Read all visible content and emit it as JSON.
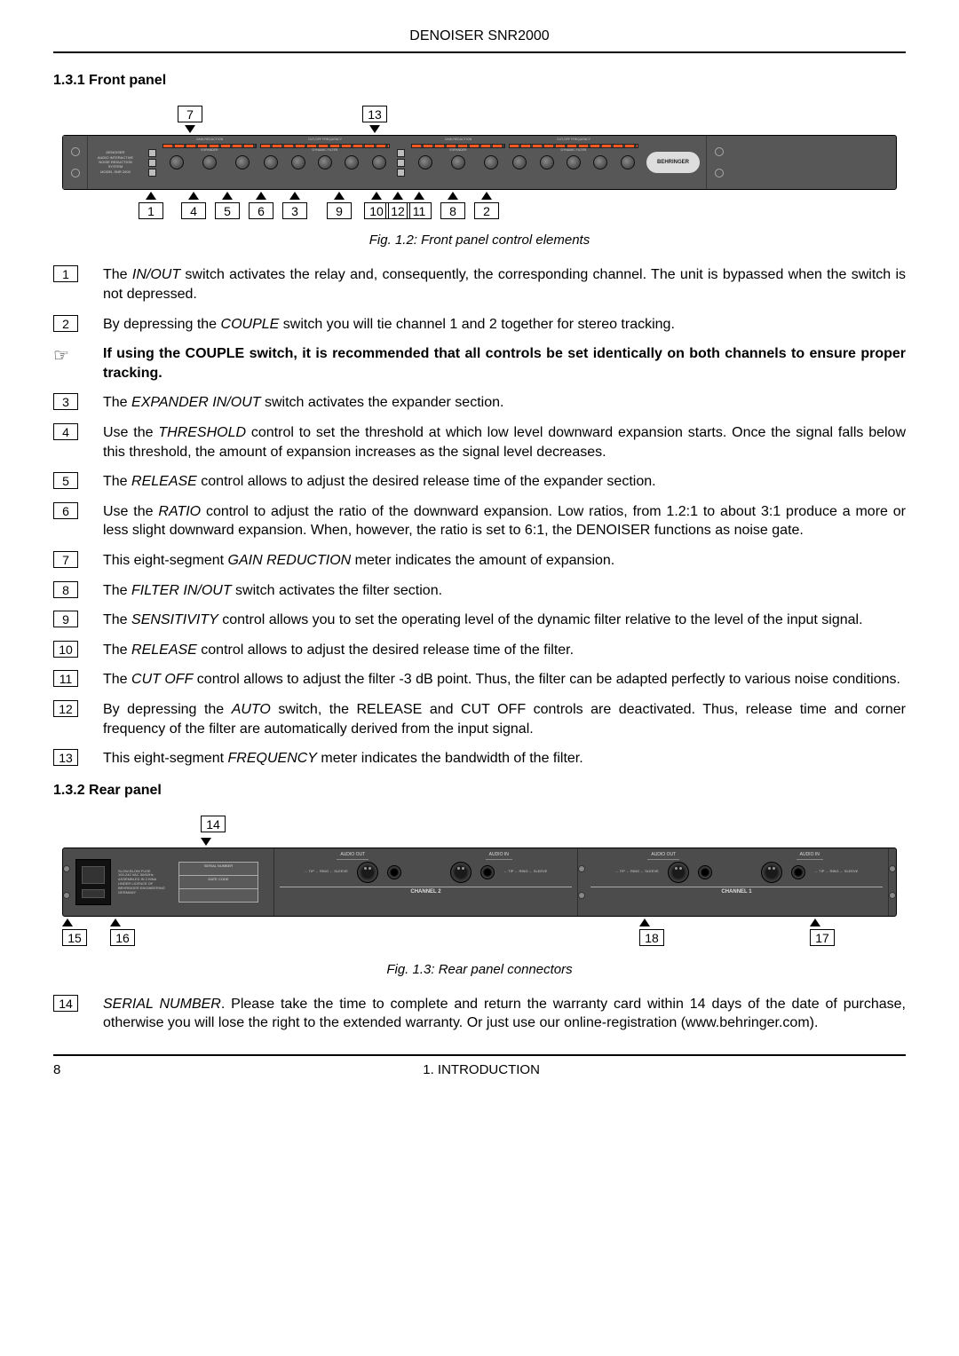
{
  "header": "DENOISER SNR2000",
  "section_front": "1.3.1  Front panel",
  "caption_front": "Fig. 1.2: Front panel control elements",
  "section_rear": "1.3.2  Rear panel",
  "caption_rear": "Fig. 1.3: Rear panel connectors",
  "note_icon": "☞",
  "note_text": "If using the COUPLE switch, it is recommended that all controls be set identically on both channels to ensure proper tracking.",
  "footer_page": "8",
  "footer_section": "1.  INTRODUCTION",
  "top_callouts": [
    "7",
    "13"
  ],
  "bottom_callouts": [
    "1",
    "4",
    "5",
    "6",
    "3",
    "9",
    "10",
    "12",
    "11",
    "8",
    "2"
  ],
  "rear_top_callouts": [
    "14"
  ],
  "rear_bot_left": [
    "15",
    "16"
  ],
  "rear_bot_right": [
    "18",
    "17"
  ],
  "panel": {
    "label_lines": [
      "DENOISER",
      "AUDIO INTERACTIVE",
      "NOISE REDUCTION",
      "SYSTEM",
      "MODEL SNR 2000"
    ],
    "scale_exp": "GAIN REDUCTION",
    "scale_filt": "CUT-OFF FREQUENCY",
    "sect_exp": "EXPANDER",
    "sect_filt": "DYNAMIC FILTER",
    "brand": "BEHRINGER"
  },
  "rear": {
    "sn": "SERIAL NUMBER",
    "dc": "DATE CODE",
    "audio_out": "AUDIO OUT",
    "audio_in": "AUDIO IN",
    "ch1": "CHANNEL 1",
    "ch2": "CHANNEL 2",
    "pins": "← TIP\n← RING\n← SLEEVE"
  },
  "items": [
    {
      "n": "1",
      "pre": "The ",
      "em": "IN/OUT",
      "post": " switch activates the relay and, consequently, the corresponding channel. The unit is bypassed when the switch is not depressed."
    },
    {
      "n": "2",
      "pre": "By depressing the ",
      "em": "COUPLE",
      "post": " switch you will tie channel 1 and 2 together for stereo tracking."
    },
    {
      "n": "3",
      "pre": "The ",
      "em": "EXPANDER IN/OUT",
      "post": " switch activates the expander section."
    },
    {
      "n": "4",
      "pre": "Use the ",
      "em": "THRESHOLD",
      "post": " control to set the threshold at which low level downward expansion starts. Once the signal falls below this threshold, the amount of expansion increases as the signal level decreases."
    },
    {
      "n": "5",
      "pre": "The ",
      "em": "RELEASE",
      "post": " control allows to adjust the desired release time of the expander section."
    },
    {
      "n": "6",
      "pre": "Use the ",
      "em": "RATIO",
      "post": " control to adjust the ratio of the downward expansion. Low ratios, from 1.2:1 to about 3:1 produce a more or less slight downward expansion. When, however, the ratio is set to 6:1, the DENOISER functions as noise gate."
    },
    {
      "n": "7",
      "pre": "This eight-segment ",
      "em": "GAIN REDUCTION",
      "post": " meter indicates the amount of expansion."
    },
    {
      "n": "8",
      "pre": "The ",
      "em": "FILTER IN/OUT",
      "post": " switch activates the filter section."
    },
    {
      "n": "9",
      "pre": "The ",
      "em": "SENSITIVITY",
      "post": " control allows you to set the operating level of the dynamic filter relative to the level of the input signal."
    },
    {
      "n": "10",
      "pre": "The ",
      "em": "RELEASE",
      "post": " control allows to adjust the desired release time of the filter."
    },
    {
      "n": "11",
      "pre": "The ",
      "em": "CUT OFF",
      "post": " control allows to adjust the filter -3 dB point. Thus, the filter can be adapted perfectly to various noise conditions."
    },
    {
      "n": "12",
      "pre": "By depressing the ",
      "em": "AUTO",
      "post": " switch, the RELEASE and CUT OFF controls are deactivated. Thus, release time and corner frequency of the filter are automatically derived from the input signal."
    },
    {
      "n": "13",
      "pre": "This eight-segment ",
      "em": "FREQUENCY",
      "post": " meter indicates the bandwidth of the filter."
    }
  ],
  "rear_items": [
    {
      "n": "14",
      "pre": "",
      "em": "SERIAL NUMBER",
      "post": ". Please take the time to complete and return the warranty card within 14 days of the date of purchase, otherwise you will lose the right to the extended warranty. Or just use our online-registration (www.behringer.com)."
    }
  ]
}
